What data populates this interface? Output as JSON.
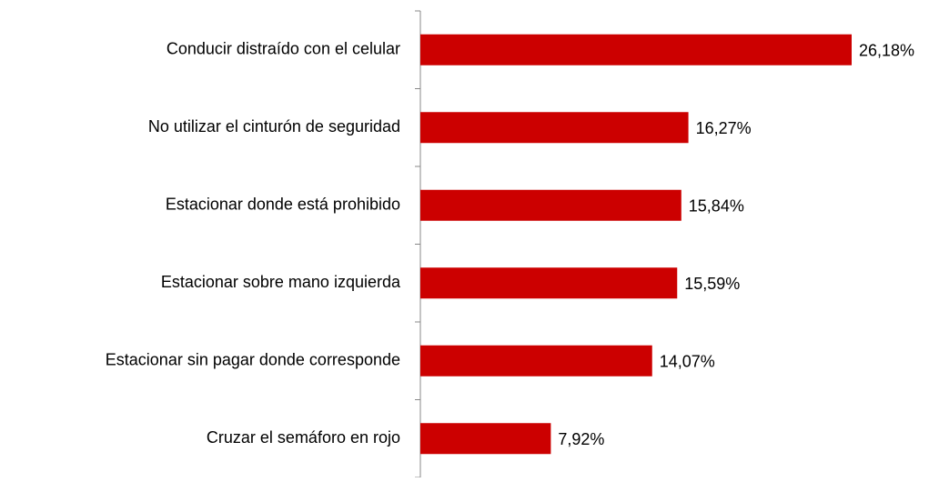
{
  "chart_data": {
    "type": "bar",
    "orientation": "horizontal",
    "categories": [
      "Conducir distraído con el celular",
      "No utilizar el cinturón de seguridad",
      "Estacionar donde está prohibido",
      "Estacionar sobre mano izquierda",
      "Estacionar sin pagar donde corresponde",
      "Cruzar el semáforo en rojo"
    ],
    "values": [
      26.18,
      16.27,
      15.84,
      15.59,
      14.07,
      7.92
    ],
    "value_labels": [
      "26,18%",
      "16,27%",
      "15,84%",
      "15,59%",
      "14,07%",
      "7,92%"
    ],
    "color": "#cc0000"
  }
}
